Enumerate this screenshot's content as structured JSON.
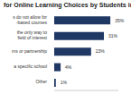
{
  "chart_data": {
    "type": "bar",
    "title": "for Online Learning Choices by Students in",
    "orientation": "horizontal",
    "categories": [
      "s do not allow for\n-based courses",
      "the only way to\nfield of interest",
      "ms or partnership",
      "a specific school",
      "Other"
    ],
    "values": [
      35,
      31,
      23,
      4,
      1
    ],
    "value_labels": [
      "35%",
      "31%",
      "23%",
      "4%",
      "1%"
    ],
    "color": "#1f3864",
    "xlim": [
      0,
      40
    ],
    "xticks": [],
    "data_labels": true,
    "tick_labels": "y",
    "grid": false
  }
}
